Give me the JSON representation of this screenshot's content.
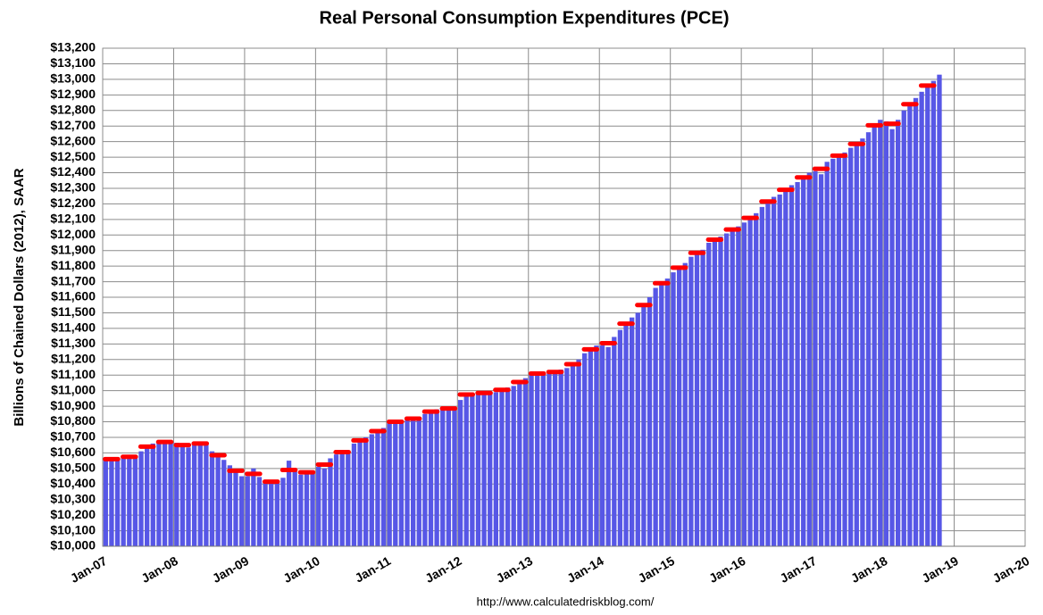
{
  "chart_data": {
    "type": "bar",
    "title": "Real Personal Consumption Expenditures (PCE)",
    "y_label": "Billions of Chained Dollars (2012), SAAR",
    "source": "http://www.calculatedriskblog.com/",
    "color": "#5757e6",
    "grid": true,
    "ylim": [
      10000,
      13200
    ],
    "yticks": [
      {
        "value": 10000,
        "label": "$10,000"
      },
      {
        "value": 10100,
        "label": "$10,100"
      },
      {
        "value": 10200,
        "label": "$10,200"
      },
      {
        "value": 10300,
        "label": "$10,300"
      },
      {
        "value": 10400,
        "label": "$10,400"
      },
      {
        "value": 10500,
        "label": "$10,500"
      },
      {
        "value": 10600,
        "label": "$10,600"
      },
      {
        "value": 10700,
        "label": "$10,700"
      },
      {
        "value": 10800,
        "label": "$10,800"
      },
      {
        "value": 10900,
        "label": "$10,900"
      },
      {
        "value": 11000,
        "label": "$11,000"
      },
      {
        "value": 11100,
        "label": "$11,100"
      },
      {
        "value": 11200,
        "label": "$11,200"
      },
      {
        "value": 11300,
        "label": "$11,300"
      },
      {
        "value": 11400,
        "label": "$11,400"
      },
      {
        "value": 11500,
        "label": "$11,500"
      },
      {
        "value": 11600,
        "label": "$11,600"
      },
      {
        "value": 11700,
        "label": "$11,700"
      },
      {
        "value": 11800,
        "label": "$11,800"
      },
      {
        "value": 11900,
        "label": "$11,900"
      },
      {
        "value": 12000,
        "label": "$12,000"
      },
      {
        "value": 12100,
        "label": "$12,100"
      },
      {
        "value": 12200,
        "label": "$12,200"
      },
      {
        "value": 12300,
        "label": "$12,300"
      },
      {
        "value": 12400,
        "label": "$12,400"
      },
      {
        "value": 12500,
        "label": "$12,500"
      },
      {
        "value": 12600,
        "label": "$12,600"
      },
      {
        "value": 12700,
        "label": "$12,700"
      },
      {
        "value": 12800,
        "label": "$12,800"
      },
      {
        "value": 12900,
        "label": "$12,900"
      },
      {
        "value": 13000,
        "label": "$13,000"
      },
      {
        "value": 13100,
        "label": "$13,100"
      },
      {
        "value": 13200,
        "label": "$13,200"
      }
    ],
    "categories": [
      "Jan-07",
      null,
      null,
      null,
      null,
      null,
      null,
      null,
      null,
      null,
      null,
      null,
      "Jan-08",
      null,
      null,
      null,
      null,
      null,
      null,
      null,
      null,
      null,
      null,
      null,
      "Jan-09",
      null,
      null,
      null,
      null,
      null,
      null,
      null,
      null,
      null,
      null,
      null,
      "Jan-10",
      null,
      null,
      null,
      null,
      null,
      null,
      null,
      null,
      null,
      null,
      null,
      "Jan-11",
      null,
      null,
      null,
      null,
      null,
      null,
      null,
      null,
      null,
      null,
      null,
      "Jan-12",
      null,
      null,
      null,
      null,
      null,
      null,
      null,
      null,
      null,
      null,
      null,
      "Jan-13",
      null,
      null,
      null,
      null,
      null,
      null,
      null,
      null,
      null,
      null,
      null,
      "Jan-14",
      null,
      null,
      null,
      null,
      null,
      null,
      null,
      null,
      null,
      null,
      null,
      "Jan-15",
      null,
      null,
      null,
      null,
      null,
      null,
      null,
      null,
      null,
      null,
      null,
      "Jan-16",
      null,
      null,
      null,
      null,
      null,
      null,
      null,
      null,
      null,
      null,
      null,
      "Jan-17",
      null,
      null,
      null,
      null,
      null,
      null,
      null,
      null,
      null,
      null,
      null,
      "Jan-18",
      null,
      null,
      null,
      null,
      null,
      null,
      null,
      null,
      null,
      null,
      null,
      "Jan-19",
      null,
      null,
      null,
      null,
      null,
      null,
      null,
      null,
      null,
      null,
      null,
      "Jan-20"
    ],
    "values": [
      10550,
      10560,
      10570,
      10570,
      10580,
      10575,
      10610,
      10640,
      10660,
      10665,
      10670,
      10675,
      10665,
      10650,
      10635,
      10650,
      10670,
      10660,
      10610,
      10590,
      10555,
      10520,
      10490,
      10450,
      10450,
      10500,
      10445,
      10420,
      10410,
      10415,
      10440,
      10550,
      10480,
      10460,
      10480,
      10485,
      10510,
      10500,
      10565,
      10590,
      10610,
      10615,
      10660,
      10680,
      10700,
      10720,
      10740,
      10760,
      10790,
      10800,
      10810,
      10810,
      10820,
      10830,
      10850,
      10865,
      10880,
      10880,
      10885,
      10890,
      10940,
      10980,
      10985,
      10980,
      10990,
      10985,
      10990,
      11005,
      11020,
      11030,
      11055,
      11080,
      11100,
      11110,
      11110,
      11110,
      11115,
      11135,
      11145,
      11165,
      11200,
      11240,
      11265,
      11290,
      11290,
      11280,
      11345,
      11390,
      11420,
      11470,
      11500,
      11550,
      11600,
      11660,
      11690,
      11720,
      11760,
      11790,
      11820,
      11860,
      11890,
      11905,
      11950,
      11970,
      11990,
      12010,
      12040,
      12055,
      12080,
      12110,
      12140,
      12180,
      12220,
      12245,
      12260,
      12290,
      12320,
      12340,
      12370,
      12400,
      12410,
      12390,
      12470,
      12490,
      12510,
      12530,
      12560,
      12580,
      12620,
      12660,
      12710,
      12740,
      12730,
      12680,
      12740,
      12800,
      12840,
      12880,
      12920,
      12960,
      12990,
      13030,
      null,
      null,
      null,
      null,
      null,
      null,
      null,
      null,
      null,
      null,
      null,
      null,
      null,
      null,
      null
    ],
    "markers": {
      "color": "#ff0000",
      "values": [
        null,
        10560,
        null,
        null,
        10575,
        null,
        null,
        10640,
        null,
        null,
        10670,
        null,
        null,
        10650,
        null,
        null,
        10660,
        null,
        null,
        10585,
        null,
        null,
        10485,
        null,
        null,
        10465,
        null,
        null,
        10415,
        null,
        null,
        10490,
        null,
        null,
        10475,
        null,
        null,
        10525,
        null,
        null,
        10605,
        null,
        null,
        10680,
        null,
        null,
        10740,
        null,
        null,
        10800,
        null,
        null,
        10820,
        null,
        null,
        10865,
        null,
        null,
        10885,
        null,
        null,
        10975,
        null,
        null,
        10985,
        null,
        null,
        11005,
        null,
        null,
        11055,
        null,
        null,
        11110,
        null,
        null,
        11120,
        null,
        null,
        11170,
        null,
        null,
        11265,
        null,
        null,
        11305,
        null,
        null,
        11430,
        null,
        null,
        11550,
        null,
        null,
        11690,
        null,
        null,
        11790,
        null,
        null,
        11885,
        null,
        null,
        11970,
        null,
        null,
        12035,
        null,
        null,
        12110,
        null,
        null,
        12215,
        null,
        null,
        12290,
        null,
        null,
        12370,
        null,
        null,
        12425,
        null,
        null,
        12510,
        null,
        null,
        12585,
        null,
        null,
        12705,
        null,
        null,
        12715,
        null,
        null,
        12840,
        null,
        null,
        12960,
        null,
        null,
        null,
        null,
        null,
        null,
        null,
        null,
        null,
        null,
        null,
        null,
        null,
        null,
        null,
        null,
        null
      ]
    }
  }
}
